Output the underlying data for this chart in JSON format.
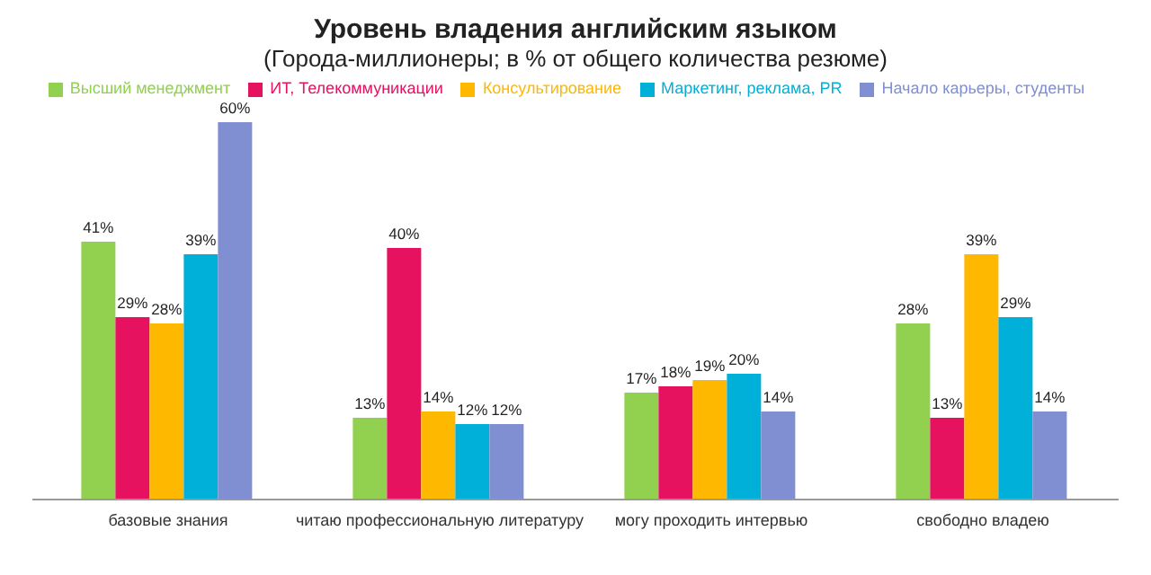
{
  "chart_data": {
    "type": "bar",
    "title": "Уровень владения английским языком",
    "subtitle": "(Города-миллионеры;  в % от общего количества резюме)",
    "categories": [
      "базовые знания",
      "читаю профессиональную литературу",
      "могу проходить интервью",
      "свободно владею"
    ],
    "series": [
      {
        "name": "Высший менеджмент",
        "color": "#92d050",
        "values": [
          41,
          13,
          17,
          28
        ],
        "value_labels": [
          "41%",
          "13%",
          "17%",
          "28%"
        ]
      },
      {
        "name": "ИТ, Телекоммуникации",
        "color": "#e6125f",
        "values": [
          29,
          40,
          18,
          13
        ],
        "value_labels": [
          "29%",
          "40%",
          "18%",
          "13%"
        ]
      },
      {
        "name": "Консультирование",
        "color": "#ffb800",
        "values": [
          28,
          14,
          19,
          39
        ],
        "value_labels": [
          "28%",
          "14%",
          "19%",
          "39%"
        ]
      },
      {
        "name": "Маркетинг, реклама, PR",
        "color": "#00b0d8",
        "values": [
          39,
          12,
          20,
          29
        ],
        "value_labels": [
          "39%",
          "12%",
          "20%",
          "29%"
        ]
      },
      {
        "name": "Начало карьеры, студенты",
        "color": "#7f8fd2",
        "values": [
          60,
          12,
          14,
          14
        ],
        "value_labels": [
          "60%",
          "12%",
          "14%",
          "14%"
        ]
      }
    ],
    "legend": "top",
    "grid": false
  }
}
